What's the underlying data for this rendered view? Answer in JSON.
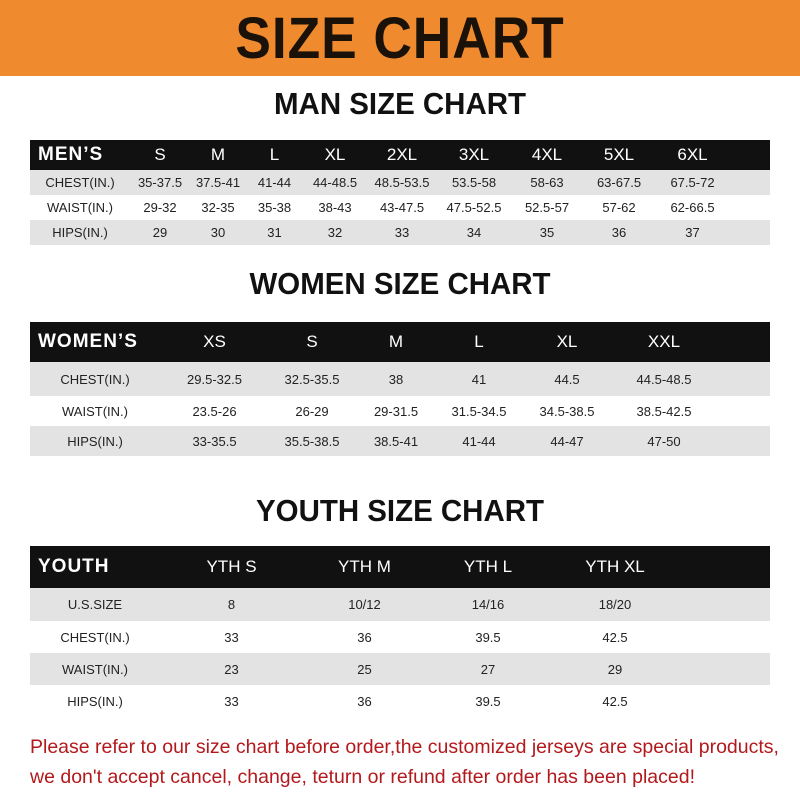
{
  "banner": {
    "title": "SIZE CHART",
    "color": "#ef8a2e"
  },
  "men": {
    "title": "MAN SIZE CHART",
    "header": [
      "MEN’S",
      "S",
      "M",
      "L",
      "XL",
      "2XL",
      "3XL",
      "4XL",
      "5XL",
      "6XL"
    ],
    "rows": [
      [
        "CHEST(IN.)",
        "35-37.5",
        "37.5-41",
        "41-44",
        "44-48.5",
        "48.5-53.5",
        "53.5-58",
        "58-63",
        "63-67.5",
        "67.5-72"
      ],
      [
        "WAIST(IN.)",
        "29-32",
        "32-35",
        "35-38",
        "38-43",
        "43-47.5",
        "47.5-52.5",
        "52.5-57",
        "57-62",
        "62-66.5"
      ],
      [
        "HIPS(IN.)",
        "29",
        "30",
        "31",
        "32",
        "33",
        "34",
        "35",
        "36",
        "37"
      ]
    ]
  },
  "women": {
    "title": "WOMEN SIZE CHART",
    "header": [
      "WOMEN’S",
      "XS",
      "S",
      "M",
      "L",
      "XL",
      "XXL"
    ],
    "rows": [
      [
        "CHEST(IN.)",
        "29.5-32.5",
        "32.5-35.5",
        "38",
        "41",
        "44.5",
        "44.5-48.5"
      ],
      [
        "WAIST(IN.)",
        "23.5-26",
        "26-29",
        "29-31.5",
        "31.5-34.5",
        "34.5-38.5",
        "38.5-42.5"
      ],
      [
        "HIPS(IN.)",
        "33-35.5",
        "35.5-38.5",
        "38.5-41",
        "41-44",
        "44-47",
        "47-50"
      ]
    ]
  },
  "youth": {
    "title": "YOUTH SIZE CHART",
    "header": [
      "YOUTH",
      "YTH S",
      "YTH M",
      "YTH L",
      "YTH XL"
    ],
    "rows": [
      [
        "U.S.SIZE",
        "8",
        "10/12",
        "14/16",
        "18/20"
      ],
      [
        "CHEST(IN.)",
        "33",
        "36",
        "39.5",
        "42.5"
      ],
      [
        "WAIST(IN.)",
        "23",
        "25",
        "27",
        "29"
      ],
      [
        "HIPS(IN.)",
        "33",
        "36",
        "39.5",
        "42.5"
      ]
    ]
  },
  "notice": {
    "line1": "Please refer to our size chart before order,the customized jerseys are special products,",
    "line2": "we don't accept cancel, change, teturn or refund after order has been placed!"
  }
}
